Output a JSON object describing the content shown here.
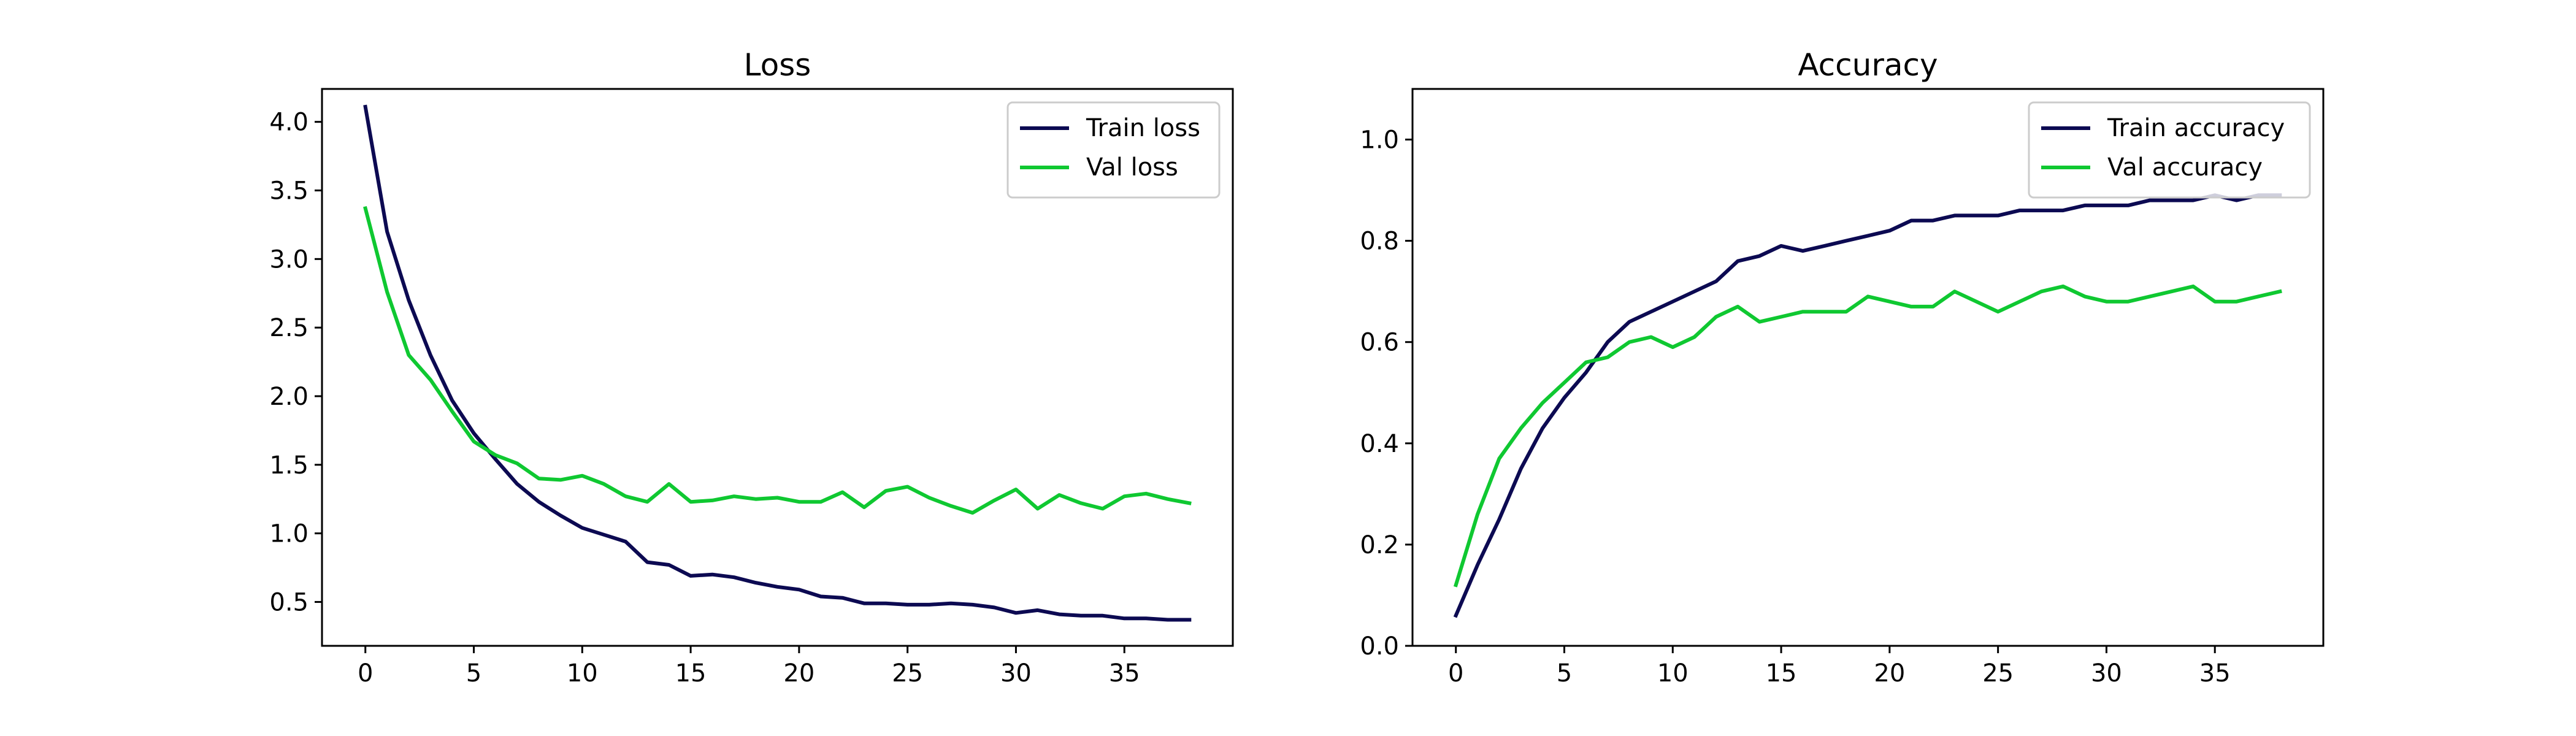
{
  "chart_data": [
    {
      "type": "line",
      "title": "Loss",
      "xlabel": "",
      "ylabel": "",
      "xlim": [
        -2,
        40
      ],
      "ylim": [
        0.18,
        4.24
      ],
      "xticks": [
        0,
        5,
        10,
        15,
        20,
        25,
        30,
        35
      ],
      "xtick_labels": [
        "0",
        "5",
        "10",
        "15",
        "20",
        "25",
        "30",
        "35"
      ],
      "yticks": [
        0.5,
        1.0,
        1.5,
        2.0,
        2.5,
        3.0,
        3.5,
        4.0
      ],
      "ytick_labels": [
        "0.5",
        "1.0",
        "1.5",
        "2.0",
        "2.5",
        "3.0",
        "3.5",
        "4.0"
      ],
      "grid": false,
      "legend_position": "top-right",
      "x": [
        0,
        1,
        2,
        3,
        4,
        5,
        6,
        7,
        8,
        9,
        10,
        11,
        12,
        13,
        14,
        15,
        16,
        17,
        18,
        19,
        20,
        21,
        22,
        23,
        24,
        25,
        26,
        27,
        28,
        29,
        30,
        31,
        32,
        33,
        34,
        35,
        36,
        37,
        38
      ],
      "series": [
        {
          "name": "Train loss",
          "color": "#0c0a52",
          "values": [
            4.11,
            3.2,
            2.7,
            2.3,
            1.97,
            1.73,
            1.54,
            1.36,
            1.23,
            1.13,
            1.04,
            0.99,
            0.94,
            0.79,
            0.77,
            0.69,
            0.7,
            0.68,
            0.64,
            0.61,
            0.59,
            0.54,
            0.53,
            0.49,
            0.49,
            0.48,
            0.48,
            0.49,
            0.48,
            0.46,
            0.42,
            0.44,
            0.41,
            0.4,
            0.4,
            0.38,
            0.38,
            0.37,
            0.37
          ]
        },
        {
          "name": "Val loss",
          "color": "#0fc831",
          "values": [
            3.37,
            2.76,
            2.3,
            2.12,
            1.89,
            1.67,
            1.57,
            1.51,
            1.4,
            1.39,
            1.42,
            1.36,
            1.27,
            1.23,
            1.36,
            1.23,
            1.24,
            1.27,
            1.25,
            1.26,
            1.23,
            1.23,
            1.3,
            1.19,
            1.31,
            1.34,
            1.26,
            1.2,
            1.15,
            1.24,
            1.32,
            1.18,
            1.28,
            1.22,
            1.18,
            1.27,
            1.29,
            1.25,
            1.22
          ]
        }
      ]
    },
    {
      "type": "line",
      "title": "Accuracy",
      "xlabel": "",
      "ylabel": "",
      "xlim": [
        -2,
        40
      ],
      "ylim": [
        0.0,
        1.1
      ],
      "xticks": [
        0,
        5,
        10,
        15,
        20,
        25,
        30,
        35
      ],
      "xtick_labels": [
        "0",
        "5",
        "10",
        "15",
        "20",
        "25",
        "30",
        "35"
      ],
      "yticks": [
        0.0,
        0.2,
        0.4,
        0.6,
        0.8,
        1.0
      ],
      "ytick_labels": [
        "0.0",
        "0.2",
        "0.4",
        "0.6",
        "0.8",
        "1.0"
      ],
      "grid": false,
      "legend_position": "top-right",
      "x": [
        0,
        1,
        2,
        3,
        4,
        5,
        6,
        7,
        8,
        9,
        10,
        11,
        12,
        13,
        14,
        15,
        16,
        17,
        18,
        19,
        20,
        21,
        22,
        23,
        24,
        25,
        26,
        27,
        28,
        29,
        30,
        31,
        32,
        33,
        34,
        35,
        36,
        37,
        38
      ],
      "series": [
        {
          "name": "Train accuracy",
          "color": "#0c0a52",
          "values": [
            0.06,
            0.16,
            0.25,
            0.35,
            0.43,
            0.49,
            0.54,
            0.6,
            0.64,
            0.66,
            0.68,
            0.7,
            0.72,
            0.76,
            0.77,
            0.79,
            0.78,
            0.79,
            0.8,
            0.81,
            0.82,
            0.84,
            0.84,
            0.85,
            0.85,
            0.85,
            0.86,
            0.86,
            0.86,
            0.87,
            0.87,
            0.87,
            0.88,
            0.88,
            0.88,
            0.89,
            0.88,
            0.89,
            0.89
          ]
        },
        {
          "name": "Val accuracy",
          "color": "#0fc831",
          "values": [
            0.12,
            0.26,
            0.37,
            0.43,
            0.48,
            0.52,
            0.56,
            0.57,
            0.6,
            0.61,
            0.59,
            0.61,
            0.65,
            0.67,
            0.64,
            0.65,
            0.66,
            0.66,
            0.66,
            0.69,
            0.68,
            0.67,
            0.67,
            0.7,
            0.68,
            0.66,
            0.68,
            0.7,
            0.71,
            0.69,
            0.68,
            0.68,
            0.69,
            0.7,
            0.71,
            0.68,
            0.68,
            0.69,
            0.7
          ]
        }
      ]
    }
  ]
}
